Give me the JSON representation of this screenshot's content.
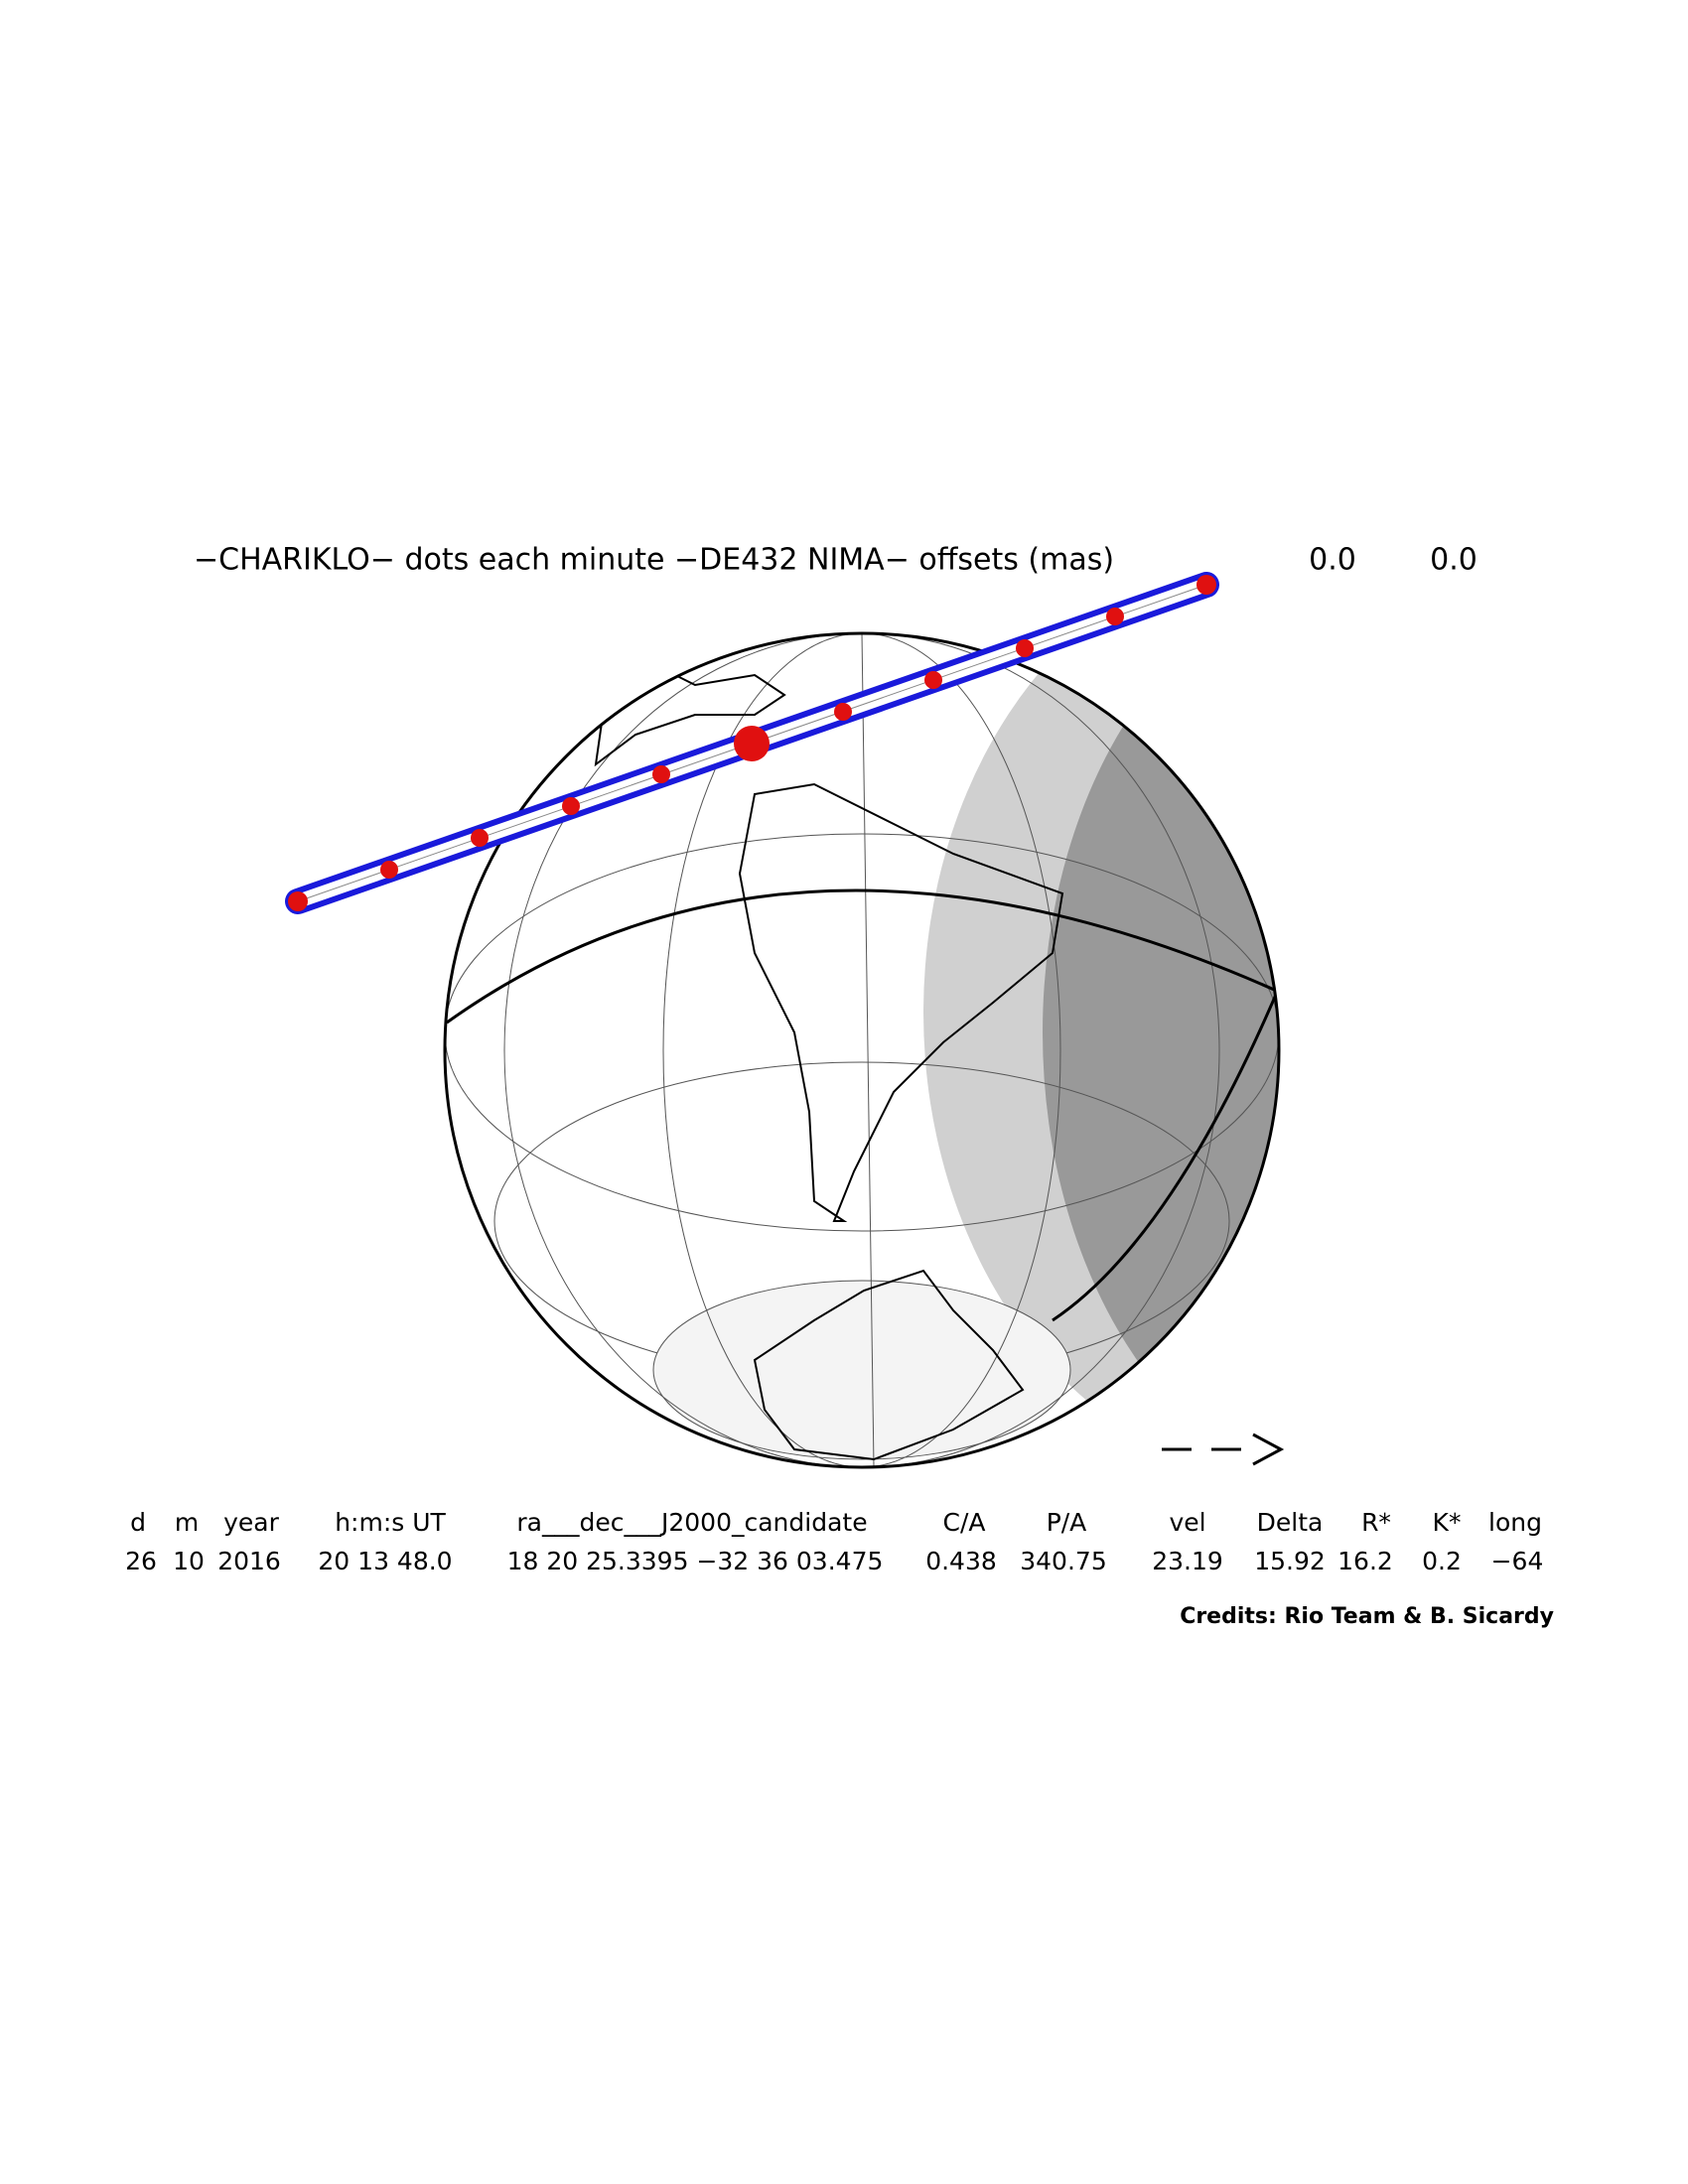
{
  "title": "−CHARIKLO− dots each minute −DE432 NIMA− offsets (mas)",
  "offsets": [
    "0.0",
    "0.0"
  ],
  "table": {
    "headers": [
      "d",
      "m",
      "year",
      "h:m:s UT",
      "ra___dec___J2000_candidate",
      "C/A",
      "P/A",
      "vel",
      "Delta",
      "R*",
      "K*",
      "long"
    ],
    "values": [
      "26",
      "10",
      "2016",
      "20 13 48.0",
      "18 20 25.3395 −32 36 03.475",
      "0.438",
      "340.75",
      "23.19",
      "15.92",
      "16.2",
      "0.2",
      "−64"
    ]
  },
  "credits": "Credits: Rio Team & B. Sicardy"
}
